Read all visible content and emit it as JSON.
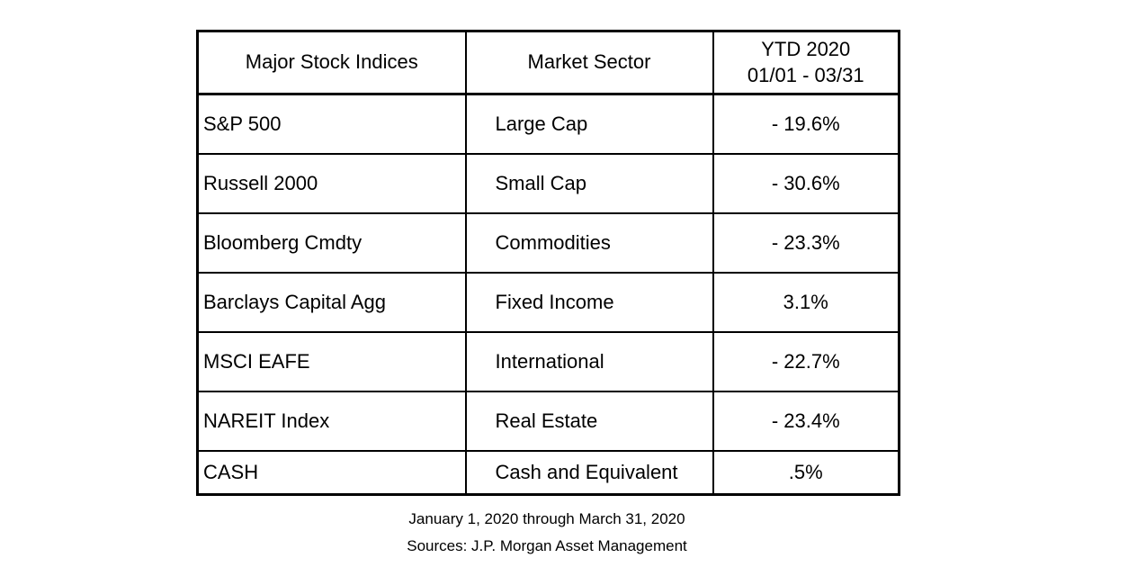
{
  "page": {
    "background": "#ffffff",
    "text_color": "#000000",
    "border_color": "#000000"
  },
  "table": {
    "header": {
      "indices": "Major Stock Indices",
      "sector": "Market Sector",
      "ytd_line1": "YTD 2020",
      "ytd_line2": "01/01 - 03/31"
    },
    "rows": [
      {
        "index": "S&P 500",
        "sector": "Large Cap",
        "ytd": "- 19.6%"
      },
      {
        "index": "Russell 2000",
        "sector": "Small Cap",
        "ytd": "- 30.6%"
      },
      {
        "index": "Bloomberg Cmdty",
        "sector": "Commodities",
        "ytd": "- 23.3%"
      },
      {
        "index": "Barclays Capital Agg",
        "sector": "Fixed Income",
        "ytd": "3.1%"
      },
      {
        "index": "MSCI EAFE",
        "sector": "International",
        "ytd": "- 22.7%"
      },
      {
        "index": "NAREIT Index",
        "sector": "Real Estate",
        "ytd": "- 23.4%"
      },
      {
        "index": "CASH",
        "sector": "Cash and Equivalent",
        "ytd": ".5%"
      }
    ]
  },
  "caption": {
    "line1": "January 1, 2020 through March 31, 2020",
    "line2": "Sources: J.P. Morgan Asset Management"
  },
  "chart_data": {
    "type": "table",
    "title": "",
    "columns": [
      "Major Stock Indices",
      "Market Sector",
      "YTD 2020 01/01 - 03/31"
    ],
    "rows": [
      [
        "S&P 500",
        "Large Cap",
        -19.6
      ],
      [
        "Russell 2000",
        "Small Cap",
        -30.6
      ],
      [
        "Bloomberg Cmdty",
        "Commodities",
        -23.3
      ],
      [
        "Barclays Capital Agg",
        "Fixed Income",
        3.1
      ],
      [
        "MSCI EAFE",
        "International",
        -22.7
      ],
      [
        "NAREIT Index",
        "Real Estate",
        -23.4
      ],
      [
        "CASH",
        "Cash and Equivalent",
        0.5
      ]
    ],
    "value_unit": "percent",
    "period": "January 1, 2020 through March 31, 2020",
    "source": "Sources: J.P. Morgan Asset Management"
  }
}
